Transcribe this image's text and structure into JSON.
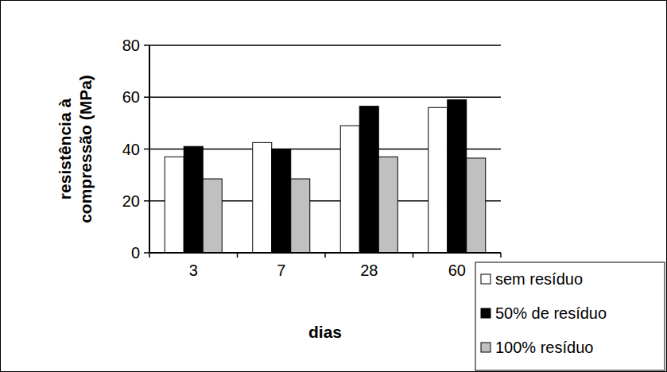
{
  "chart_data": {
    "type": "bar",
    "x_label": "dias",
    "y_label": "resistência à compressão (MPa)",
    "categories": [
      "3",
      "7",
      "28",
      "60"
    ],
    "series": [
      {
        "name": "sem resíduo",
        "color": "#ffffff",
        "values": [
          37,
          42.5,
          49,
          56
        ]
      },
      {
        "name": "50% de resíduo",
        "color": "#000000",
        "values": [
          41,
          40,
          56.5,
          59
        ]
      },
      {
        "name": "100% resíduo",
        "color": "#c0c0c0",
        "values": [
          28.5,
          28.5,
          37,
          36.5
        ]
      }
    ],
    "ylim": [
      0,
      80
    ],
    "yticks": [
      0,
      20,
      40,
      60,
      80
    ],
    "grid": true,
    "legend": "lower right"
  }
}
